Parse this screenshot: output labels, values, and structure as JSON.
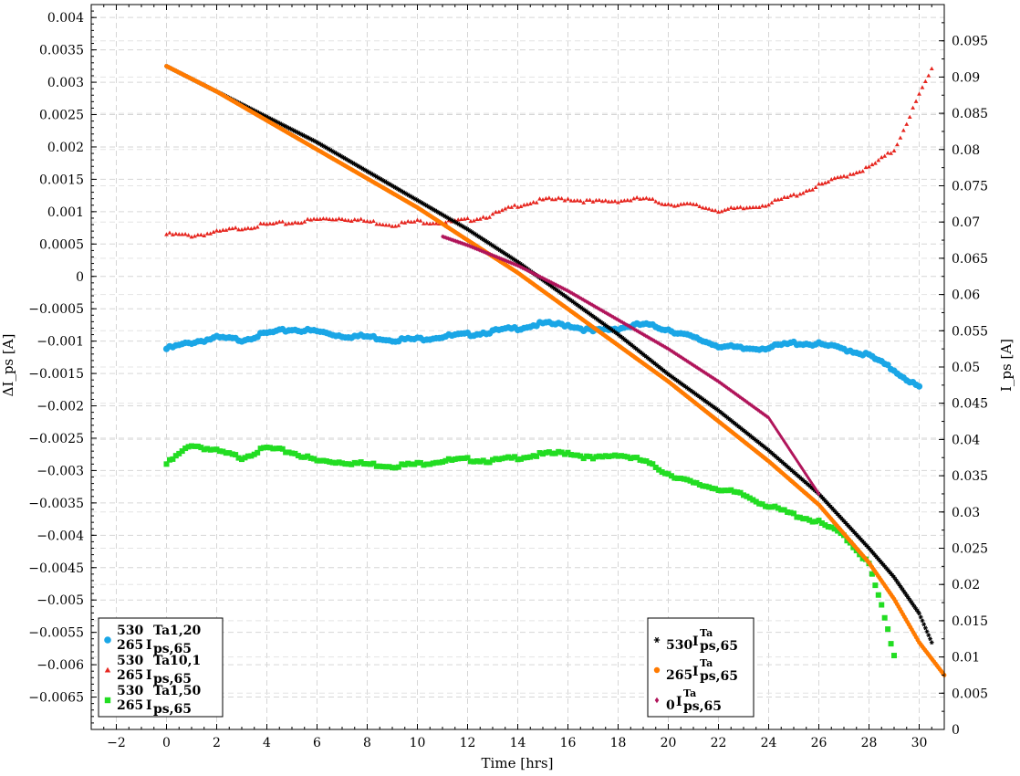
{
  "chart_data": {
    "type": "scatter",
    "xlabel": "Time [hrs]",
    "ylabel_left": "ΔI_ps [A]",
    "ylabel_right": "I_ps [A]",
    "xlim": [
      -3,
      31
    ],
    "ylim_left": [
      -0.007,
      0.0042
    ],
    "ylim_right": [
      0,
      0.1
    ],
    "grid": true,
    "x_ticks": [
      "−2",
      "0",
      "2",
      "4",
      "6",
      "8",
      "10",
      "12",
      "14",
      "16",
      "18",
      "20",
      "22",
      "24",
      "26",
      "28",
      "30"
    ],
    "y_left_ticks": [
      "0.004",
      "0.0035",
      "0.003",
      "0.0025",
      "0.002",
      "0.0015",
      "0.001",
      "0.0005",
      "0",
      "−0.0005",
      "−0.001",
      "−0.0015",
      "−0.002",
      "−0.0025",
      "−0.003",
      "−0.0035",
      "−0.004",
      "−0.0045",
      "−0.005",
      "−0.0055",
      "−0.006",
      "−0.0065"
    ],
    "y_right_ticks": [
      "0.095",
      "0.09",
      "0.085",
      "0.08",
      "0.075",
      "0.07",
      "0.065",
      "0.06",
      "0.055",
      "0.05",
      "0.045",
      "0.04",
      "0.035",
      "0.03",
      "0.025",
      "0.02",
      "0.015",
      "0.01",
      "0.005",
      "0"
    ],
    "legend_left_position": "bottom-left",
    "legend_right_position": "bottom-right",
    "series_left": [
      {
        "name": "530/265 I_ps,65^Ta1,20",
        "label_main": "I",
        "label_sub": "ps,65",
        "label_sup": "Ta1,20",
        "label_pre_top": "530",
        "label_pre_bot": "265",
        "color": "#1aa6e6",
        "marker": "circle",
        "points": [
          [
            0,
            -0.00112
          ],
          [
            1,
            -0.00102
          ],
          [
            2,
            -0.00095
          ],
          [
            3,
            -0.00098
          ],
          [
            4,
            -0.00088
          ],
          [
            5,
            -0.00082
          ],
          [
            6,
            -0.00085
          ],
          [
            7,
            -0.00092
          ],
          [
            8,
            -0.00093
          ],
          [
            9,
            -0.00098
          ],
          [
            10,
            -0.00097
          ],
          [
            11,
            -0.00093
          ],
          [
            12,
            -0.0009
          ],
          [
            13,
            -0.00085
          ],
          [
            14,
            -0.0008
          ],
          [
            15,
            -0.00073
          ],
          [
            16,
            -0.00075
          ],
          [
            17,
            -0.00085
          ],
          [
            18,
            -0.0008
          ],
          [
            19,
            -0.00074
          ],
          [
            20,
            -0.00082
          ],
          [
            21,
            -0.00095
          ],
          [
            22,
            -0.00107
          ],
          [
            23,
            -0.00112
          ],
          [
            24,
            -0.0011
          ],
          [
            25,
            -0.00103
          ],
          [
            26,
            -0.00105
          ],
          [
            27,
            -0.00112
          ],
          [
            28,
            -0.00122
          ],
          [
            29,
            -0.00145
          ],
          [
            30,
            -0.00172
          ]
        ]
      },
      {
        "name": "530/265 I_ps,65^Ta10,1",
        "label_main": "I",
        "label_sub": "ps,65",
        "label_sup": "Ta10,1",
        "label_pre_top": "530",
        "label_pre_bot": "265",
        "color": "#e6261f",
        "marker": "triangle",
        "points": [
          [
            0,
            0.00065
          ],
          [
            1,
            0.00063
          ],
          [
            2,
            0.00068
          ],
          [
            3,
            0.00075
          ],
          [
            4,
            0.0008
          ],
          [
            5,
            0.00083
          ],
          [
            6,
            0.00088
          ],
          [
            7,
            0.0009
          ],
          [
            8,
            0.00085
          ],
          [
            9,
            0.0008
          ],
          [
            10,
            0.00085
          ],
          [
            11,
            0.00083
          ],
          [
            12,
            0.00087
          ],
          [
            13,
            0.00095
          ],
          [
            14,
            0.0011
          ],
          [
            15,
            0.00118
          ],
          [
            16,
            0.0012
          ],
          [
            17,
            0.00115
          ],
          [
            18,
            0.00117
          ],
          [
            19,
            0.0012
          ],
          [
            20,
            0.00112
          ],
          [
            21,
            0.0011
          ],
          [
            22,
            0.00102
          ],
          [
            23,
            0.00105
          ],
          [
            24,
            0.00112
          ],
          [
            25,
            0.00125
          ],
          [
            26,
            0.0014
          ],
          [
            27,
            0.00155
          ],
          [
            28,
            0.00168
          ],
          [
            29,
            0.00195
          ],
          [
            30,
            0.0028
          ],
          [
            30.5,
            0.0032
          ]
        ]
      },
      {
        "name": "530/265 I_ps,65^Ta1,50",
        "label_main": "I",
        "label_sub": "ps,65",
        "label_sup": "Ta1,50",
        "label_pre_top": "530",
        "label_pre_bot": "265",
        "color": "#22dd22",
        "marker": "square",
        "points": [
          [
            0,
            -0.0029
          ],
          [
            1,
            -0.0026
          ],
          [
            2,
            -0.0027
          ],
          [
            3,
            -0.0028
          ],
          [
            4,
            -0.00265
          ],
          [
            5,
            -0.00272
          ],
          [
            6,
            -0.00285
          ],
          [
            7,
            -0.00287
          ],
          [
            8,
            -0.0029
          ],
          [
            9,
            -0.00293
          ],
          [
            10,
            -0.0029
          ],
          [
            11,
            -0.00285
          ],
          [
            12,
            -0.00283
          ],
          [
            13,
            -0.00285
          ],
          [
            14,
            -0.0028
          ],
          [
            15,
            -0.00275
          ],
          [
            16,
            -0.00272
          ],
          [
            17,
            -0.00282
          ],
          [
            18,
            -0.00275
          ],
          [
            19,
            -0.00285
          ],
          [
            20,
            -0.00305
          ],
          [
            21,
            -0.0032
          ],
          [
            22,
            -0.00328
          ],
          [
            23,
            -0.00338
          ],
          [
            24,
            -0.00355
          ],
          [
            25,
            -0.00368
          ],
          [
            26,
            -0.0038
          ],
          [
            27,
            -0.004
          ],
          [
            28,
            -0.00445
          ],
          [
            28.5,
            -0.0051
          ],
          [
            29,
            -0.00585
          ]
        ]
      }
    ],
    "series_right": [
      {
        "name": "530 I_ps,65^Ta",
        "label_pre": "530",
        "label_main": "I",
        "label_sub": "ps,65",
        "label_sup": "Ta",
        "color": "#000000",
        "marker": "star",
        "points": [
          [
            0,
            0.0915
          ],
          [
            2,
            0.088
          ],
          [
            4,
            0.0845
          ],
          [
            6,
            0.081
          ],
          [
            8,
            0.077
          ],
          [
            10,
            0.073
          ],
          [
            12,
            0.069
          ],
          [
            14,
            0.0645
          ],
          [
            16,
            0.0595
          ],
          [
            18,
            0.0545
          ],
          [
            20,
            0.049
          ],
          [
            22,
            0.044
          ],
          [
            24,
            0.0385
          ],
          [
            26,
            0.0325
          ],
          [
            28,
            0.025
          ],
          [
            29,
            0.021
          ],
          [
            30,
            0.016
          ],
          [
            30.5,
            0.012
          ]
        ]
      },
      {
        "name": "265 I_ps,65^Ta",
        "label_pre": "265",
        "label_main": "I",
        "label_sub": "ps,65",
        "label_sup": "Ta",
        "color": "#ff7a00",
        "marker": "pentagon",
        "points": [
          [
            0,
            0.0915
          ],
          [
            2,
            0.088
          ],
          [
            4,
            0.084
          ],
          [
            6,
            0.08
          ],
          [
            8,
            0.076
          ],
          [
            10,
            0.072
          ],
          [
            12,
            0.0675
          ],
          [
            14,
            0.063
          ],
          [
            16,
            0.058
          ],
          [
            18,
            0.053
          ],
          [
            20,
            0.048
          ],
          [
            22,
            0.0425
          ],
          [
            24,
            0.037
          ],
          [
            26,
            0.031
          ],
          [
            28,
            0.023
          ],
          [
            29,
            0.018
          ],
          [
            30,
            0.012
          ],
          [
            31,
            0.0075
          ]
        ]
      },
      {
        "name": "0 I_ps,65^Ta",
        "label_pre": "0",
        "label_main": "I",
        "label_sub": "ps,65",
        "label_sup": "Ta",
        "color": "#b0145a",
        "marker": "diamond",
        "points": [
          [
            11,
            0.068
          ],
          [
            12,
            0.0668
          ],
          [
            14,
            0.064
          ],
          [
            16,
            0.0605
          ],
          [
            18,
            0.0565
          ],
          [
            20,
            0.0525
          ],
          [
            22,
            0.048
          ],
          [
            24,
            0.043
          ],
          [
            26,
            0.0325
          ]
        ]
      }
    ]
  }
}
